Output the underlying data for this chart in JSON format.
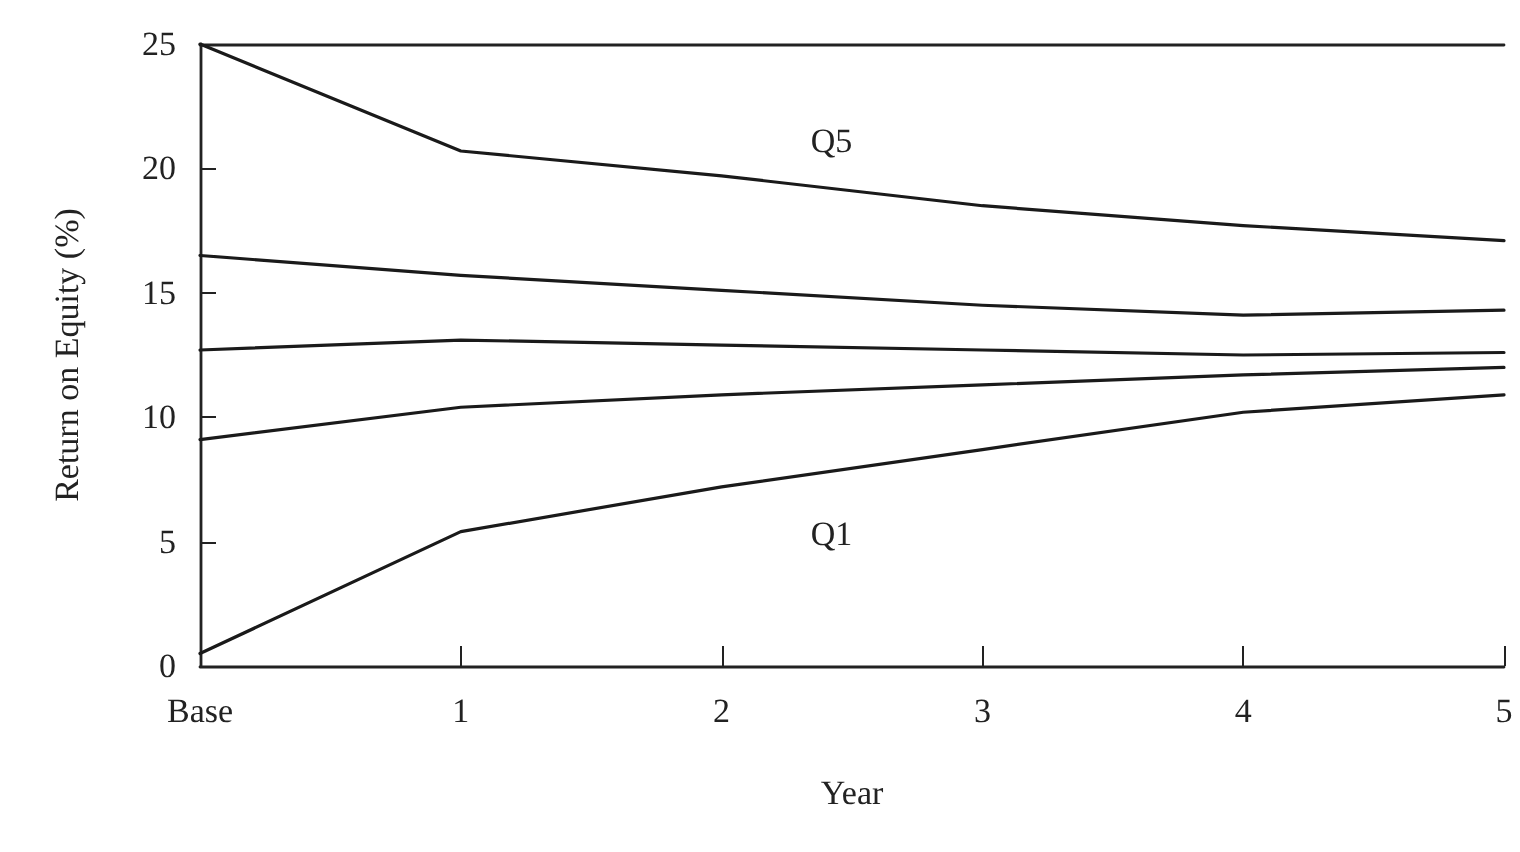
{
  "chart_data": {
    "type": "line",
    "xlabel": "Year",
    "ylabel": "Return on Equity (%)",
    "categories": [
      "Base",
      "1",
      "2",
      "3",
      "4",
      "5"
    ],
    "ylim": [
      0,
      25
    ],
    "yticks": [
      0,
      5,
      10,
      15,
      20,
      25
    ],
    "grid": false,
    "legend": false,
    "marker": "none",
    "line_style": "solid",
    "series": [
      {
        "name": "Q5",
        "color": "#1a1a1a",
        "values": [
          25,
          20.7,
          19.7,
          18.5,
          17.7,
          17.1
        ]
      },
      {
        "color": "#1a1a1a",
        "values": [
          16.5,
          15.7,
          15.1,
          14.5,
          14.1,
          14.3
        ]
      },
      {
        "color": "#1a1a1a",
        "values": [
          12.7,
          13.1,
          12.9,
          12.7,
          12.5,
          12.6
        ]
      },
      {
        "color": "#1a1a1a",
        "values": [
          9.1,
          10.4,
          10.9,
          11.3,
          11.7,
          12.0
        ]
      },
      {
        "name": "Q1",
        "color": "#1a1a1a",
        "values": [
          0.5,
          5.4,
          7.2,
          8.7,
          10.2,
          10.9
        ]
      }
    ]
  }
}
